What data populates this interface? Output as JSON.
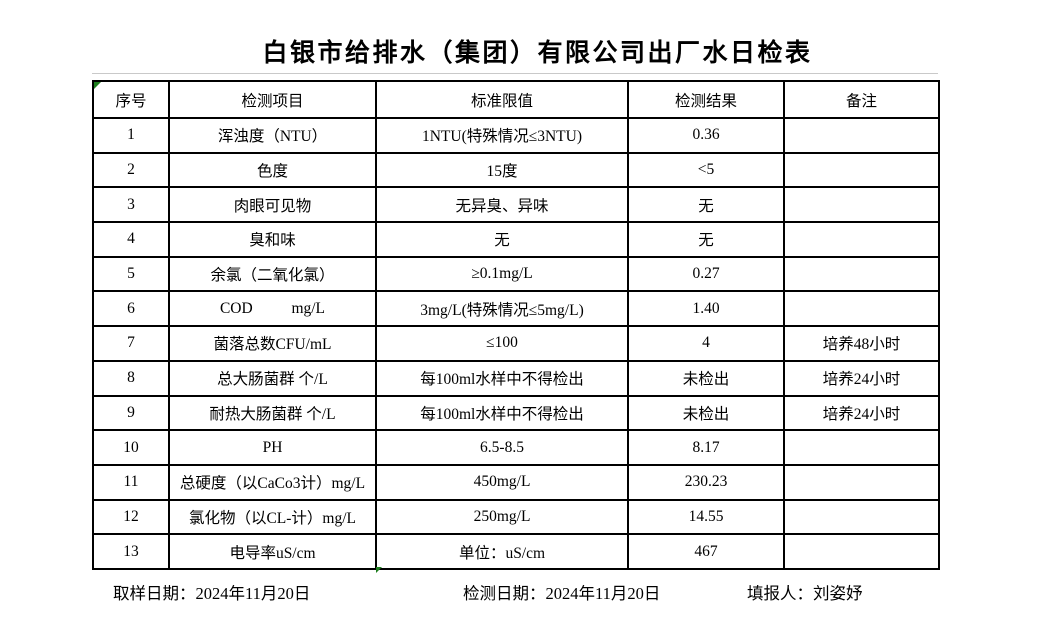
{
  "title": "白银市给排水（集团）有限公司出厂水日检表",
  "table": {
    "headers": [
      "序号",
      "检测项目",
      "标准限值",
      "检测结果",
      "备注"
    ],
    "rows": [
      [
        "1",
        "浑浊度（NTU）",
        "1NTU(特殊情况≤3NTU)",
        "0.36",
        ""
      ],
      [
        "2",
        "色度",
        "15度",
        "<5",
        ""
      ],
      [
        "3",
        "肉眼可见物",
        "无异臭、异味",
        "无",
        ""
      ],
      [
        "4",
        "臭和味",
        "无",
        "无",
        ""
      ],
      [
        "5",
        "余氯（二氧化氯）",
        "≥0.1mg/L",
        "0.27",
        ""
      ],
      [
        "6",
        "COD          mg/L",
        "3mg/L(特殊情况≤5mg/L)",
        "1.40",
        ""
      ],
      [
        "7",
        "菌落总数CFU/mL",
        "≤100",
        "4",
        "培养48小时"
      ],
      [
        "8",
        "总大肠菌群 个/L",
        "每100ml水样中不得检出",
        "未检出",
        "培养24小时"
      ],
      [
        "9",
        "耐热大肠菌群 个/L",
        "每100ml水样中不得检出",
        "未检出",
        "培养24小时"
      ],
      [
        "10",
        "PH",
        "6.5-8.5",
        "8.17",
        ""
      ],
      [
        "11",
        "总硬度（以CaCo3计）mg/L",
        "450mg/L",
        "230.23",
        ""
      ],
      [
        "12",
        "氯化物（以CL-计）mg/L",
        "250mg/L",
        "14.55",
        ""
      ],
      [
        "13",
        "电导率uS/cm",
        "单位：uS/cm",
        "467",
        ""
      ]
    ]
  },
  "footer": {
    "sample_date": "取样日期：2024年11月20日",
    "test_date": "检测日期：2024年11月20日",
    "reporter": "填报人：刘姿妤"
  },
  "icons": {
    "error_indicator": "excel-green-error-triangle",
    "fill_handle": "excel-green-fill-handle-triangle"
  },
  "colors": {
    "background": "#ffffff",
    "text": "#000000",
    "table_border": "#000000",
    "marker_green": "#1e7e1e",
    "gridline_gray": "#c9c9c9"
  }
}
